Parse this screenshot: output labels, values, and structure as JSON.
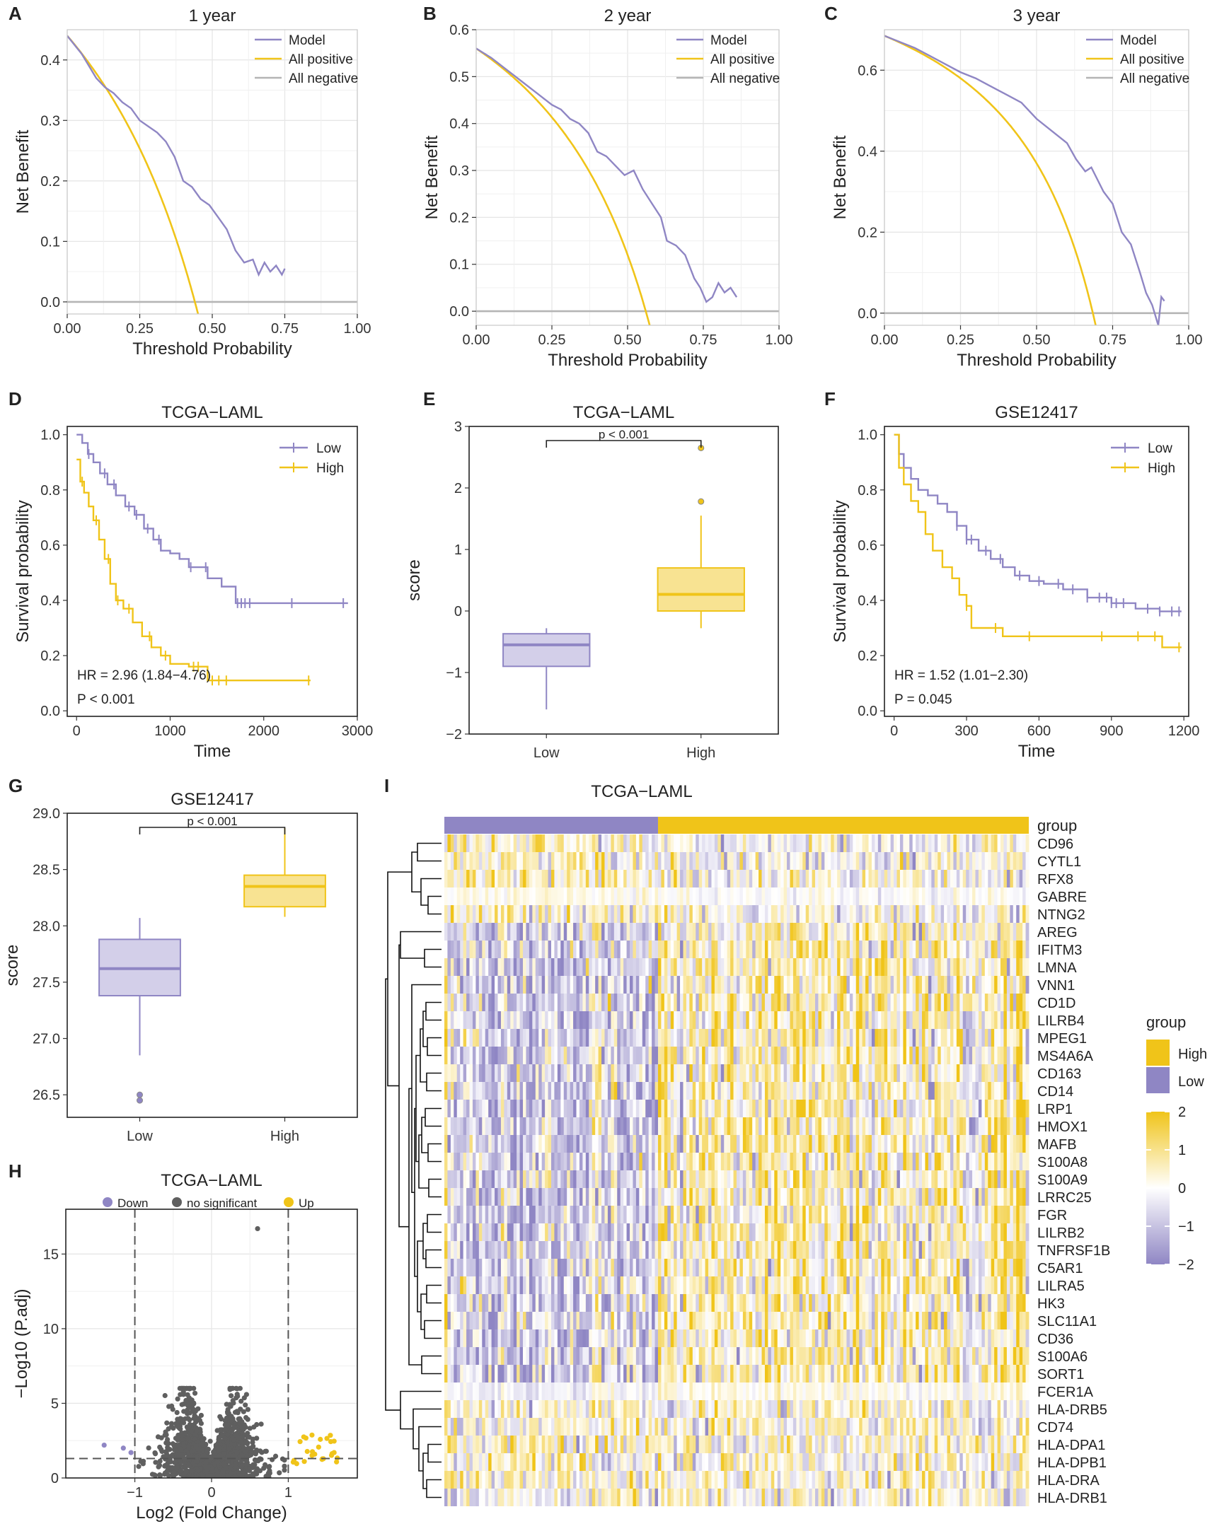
{
  "colors": {
    "purple": "#8f86c4",
    "gold": "#f0c419",
    "gray": "#b5b5b5",
    "dark": "#5f5f5f",
    "heat_low": "#8f86c4",
    "heat_mid": "#ffffff",
    "heat_high": "#f0c419"
  },
  "chart_data": [
    {
      "id": "A",
      "type": "line",
      "title": "1 year",
      "xlabel": "Threshold Probability",
      "ylabel": "Net Benefit",
      "xlim": [
        0,
        1
      ],
      "ylim": [
        -0.02,
        0.45
      ],
      "xticks": [
        0,
        0.25,
        0.5,
        0.75,
        1.0
      ],
      "xtick_labels": [
        "0.00",
        "0.25",
        "0.50",
        "0.75",
        "1.00"
      ],
      "yticks": [
        0,
        0.1,
        0.2,
        0.3,
        0.4
      ],
      "ytick_labels": [
        "0.0",
        "0.1",
        "0.2",
        "0.3",
        "0.4"
      ],
      "prevalence": 0.44,
      "legend": [
        "Model",
        "All positive",
        "All negative"
      ],
      "series": [
        {
          "name": "Model",
          "x": [
            0,
            0.05,
            0.1,
            0.13,
            0.16,
            0.19,
            0.22,
            0.25,
            0.28,
            0.31,
            0.34,
            0.37,
            0.4,
            0.43,
            0.46,
            0.49,
            0.52,
            0.55,
            0.58,
            0.61,
            0.64,
            0.66,
            0.68,
            0.7,
            0.72,
            0.74,
            0.75
          ],
          "y": [
            0.44,
            0.41,
            0.37,
            0.355,
            0.345,
            0.33,
            0.32,
            0.3,
            0.29,
            0.28,
            0.265,
            0.24,
            0.2,
            0.19,
            0.17,
            0.16,
            0.14,
            0.12,
            0.085,
            0.065,
            0.07,
            0.045,
            0.065,
            0.05,
            0.06,
            0.045,
            0.055
          ]
        },
        {
          "name": "All negative",
          "x": [
            0,
            1
          ],
          "y": [
            0,
            0
          ]
        }
      ]
    },
    {
      "id": "B",
      "type": "line",
      "title": "2 year",
      "xlabel": "Threshold Probability",
      "ylabel": "Net Benefit",
      "xlim": [
        0,
        1
      ],
      "ylim": [
        -0.03,
        0.6
      ],
      "xticks": [
        0,
        0.25,
        0.5,
        0.75,
        1.0
      ],
      "xtick_labels": [
        "0.00",
        "0.25",
        "0.50",
        "0.75",
        "1.00"
      ],
      "yticks": [
        0,
        0.1,
        0.2,
        0.3,
        0.4,
        0.5,
        0.6
      ],
      "ytick_labels": [
        "0.0",
        "0.1",
        "0.2",
        "0.3",
        "0.4",
        "0.5",
        "0.6"
      ],
      "prevalence": 0.56,
      "legend": [
        "Model",
        "All positive",
        "All negative"
      ],
      "series": [
        {
          "name": "Model",
          "x": [
            0,
            0.05,
            0.1,
            0.15,
            0.2,
            0.25,
            0.28,
            0.31,
            0.34,
            0.37,
            0.4,
            0.43,
            0.46,
            0.49,
            0.52,
            0.55,
            0.58,
            0.61,
            0.63,
            0.66,
            0.69,
            0.72,
            0.74,
            0.76,
            0.78,
            0.8,
            0.82,
            0.84,
            0.86
          ],
          "y": [
            0.56,
            0.54,
            0.515,
            0.49,
            0.465,
            0.44,
            0.43,
            0.41,
            0.4,
            0.38,
            0.34,
            0.33,
            0.31,
            0.29,
            0.3,
            0.26,
            0.23,
            0.2,
            0.15,
            0.14,
            0.12,
            0.07,
            0.05,
            0.02,
            0.03,
            0.06,
            0.04,
            0.05,
            0.03
          ]
        },
        {
          "name": "All negative",
          "x": [
            0,
            1
          ],
          "y": [
            0,
            0
          ]
        }
      ]
    },
    {
      "id": "C",
      "type": "line",
      "title": "3 year",
      "xlabel": "Threshold Probability",
      "ylabel": "Net Benefit",
      "xlim": [
        0,
        1
      ],
      "ylim": [
        -0.03,
        0.7
      ],
      "xticks": [
        0,
        0.25,
        0.5,
        0.75,
        1.0
      ],
      "xtick_labels": [
        "0.00",
        "0.25",
        "0.50",
        "0.75",
        "1.00"
      ],
      "yticks": [
        0,
        0.2,
        0.4,
        0.6
      ],
      "ytick_labels": [
        "0.0",
        "0.2",
        "0.4",
        "0.6"
      ],
      "prevalence": 0.685,
      "legend": [
        "Model",
        "All positive",
        "All negative"
      ],
      "series": [
        {
          "name": "Model",
          "x": [
            0,
            0.05,
            0.1,
            0.15,
            0.2,
            0.25,
            0.3,
            0.35,
            0.4,
            0.45,
            0.5,
            0.55,
            0.6,
            0.63,
            0.66,
            0.68,
            0.7,
            0.72,
            0.75,
            0.78,
            0.81,
            0.84,
            0.86,
            0.88,
            0.9,
            0.91,
            0.92
          ],
          "y": [
            0.685,
            0.67,
            0.655,
            0.635,
            0.615,
            0.595,
            0.58,
            0.56,
            0.54,
            0.52,
            0.48,
            0.45,
            0.42,
            0.38,
            0.35,
            0.36,
            0.33,
            0.3,
            0.27,
            0.2,
            0.17,
            0.1,
            0.05,
            0.02,
            -0.03,
            0.04,
            0.03
          ]
        },
        {
          "name": "All negative",
          "x": [
            0,
            1
          ],
          "y": [
            0,
            0
          ]
        }
      ]
    },
    {
      "id": "D",
      "type": "line",
      "subtype": "km",
      "title": "TCGA−LAML",
      "xlabel": "Time",
      "ylabel": "Survival probability",
      "xlim": [
        -100,
        3000
      ],
      "ylim": [
        -0.02,
        1.03
      ],
      "xticks": [
        0,
        1000,
        2000,
        3000
      ],
      "xtick_labels": [
        "0",
        "1000",
        "2000",
        "3000"
      ],
      "yticks": [
        0,
        0.2,
        0.4,
        0.6,
        0.8,
        1.0
      ],
      "ytick_labels": [
        "0.0",
        "0.2",
        "0.4",
        "0.6",
        "0.8",
        "1.0"
      ],
      "legend": [
        "Low",
        "High"
      ],
      "annotation": [
        "HR = 2.96 (1.84−4.76)",
        "P < 0.001"
      ],
      "series": [
        {
          "name": "Low",
          "x": [
            0,
            60,
            120,
            180,
            250,
            330,
            420,
            520,
            620,
            720,
            820,
            900,
            1000,
            1100,
            1200,
            1400,
            1550,
            1700,
            2000,
            2900
          ],
          "y": [
            1.0,
            0.97,
            0.93,
            0.9,
            0.86,
            0.82,
            0.78,
            0.74,
            0.71,
            0.66,
            0.62,
            0.58,
            0.57,
            0.55,
            0.52,
            0.48,
            0.45,
            0.39,
            0.39,
            0.39
          ],
          "censor": [
            130,
            300,
            400,
            560,
            640,
            760,
            880,
            1220,
            1380,
            1720,
            1760,
            1800,
            1850,
            2300,
            2850
          ]
        },
        {
          "name": "High",
          "x": [
            0,
            40,
            80,
            130,
            180,
            240,
            300,
            360,
            420,
            500,
            600,
            700,
            800,
            900,
            1000,
            1200,
            1400,
            1600,
            2500
          ],
          "y": [
            0.91,
            0.83,
            0.79,
            0.74,
            0.69,
            0.62,
            0.55,
            0.46,
            0.4,
            0.37,
            0.32,
            0.27,
            0.23,
            0.2,
            0.17,
            0.16,
            0.11,
            0.11,
            0.11
          ],
          "censor": [
            60,
            210,
            340,
            440,
            560,
            780,
            950,
            1250,
            1300,
            1450,
            1520,
            1600,
            2480
          ]
        }
      ]
    },
    {
      "id": "E",
      "type": "bar",
      "subtype": "boxplot",
      "title": "TCGA−LAML",
      "xlabel": "",
      "ylabel": "score",
      "categories": [
        "Low",
        "High"
      ],
      "ylim": [
        -2,
        3
      ],
      "yticks": [
        -2,
        -1,
        0,
        1,
        2,
        3
      ],
      "ytick_labels": [
        "−2",
        "−1",
        "0",
        "1",
        "2",
        "3"
      ],
      "pvalue": "p < 0.001",
      "boxes": [
        {
          "q1": -0.9,
          "median": -0.55,
          "q3": -0.37,
          "lo": -1.6,
          "hi": -0.28,
          "out": []
        },
        {
          "q1": 0.0,
          "median": 0.27,
          "q3": 0.7,
          "lo": -0.28,
          "hi": 1.55,
          "out": [
            1.78,
            2.65
          ]
        }
      ]
    },
    {
      "id": "F",
      "type": "line",
      "subtype": "km",
      "title": "GSE12417",
      "xlabel": "Time",
      "ylabel": "Survival probability",
      "xlim": [
        -40,
        1220
      ],
      "ylim": [
        -0.02,
        1.03
      ],
      "xticks": [
        0,
        300,
        600,
        900,
        1200
      ],
      "xtick_labels": [
        "0",
        "300",
        "600",
        "900",
        "1200"
      ],
      "yticks": [
        0,
        0.2,
        0.4,
        0.6,
        0.8,
        1.0
      ],
      "ytick_labels": [
        "0.0",
        "0.2",
        "0.4",
        "0.6",
        "0.8",
        "1.0"
      ],
      "legend": [
        "Low",
        "High"
      ],
      "annotation": [
        "HR = 1.52 (1.01−2.30)",
        "P = 0.045"
      ],
      "series": [
        {
          "name": "Low",
          "x": [
            0,
            20,
            40,
            70,
            100,
            140,
            180,
            220,
            260,
            300,
            350,
            400,
            450,
            500,
            560,
            620,
            700,
            800,
            900,
            1000,
            1100,
            1190
          ],
          "y": [
            1.0,
            0.93,
            0.88,
            0.84,
            0.8,
            0.78,
            0.75,
            0.72,
            0.67,
            0.62,
            0.58,
            0.55,
            0.52,
            0.49,
            0.47,
            0.46,
            0.44,
            0.41,
            0.39,
            0.37,
            0.36,
            0.36
          ],
          "censor": [
            260,
            300,
            320,
            380,
            440,
            520,
            600,
            680,
            740,
            800,
            850,
            880,
            900,
            920,
            950,
            1050,
            1100,
            1150,
            1180
          ]
        },
        {
          "name": "High",
          "x": [
            0,
            20,
            40,
            70,
            100,
            130,
            160,
            200,
            240,
            270,
            300,
            320,
            450,
            600,
            900,
            1110,
            1190
          ],
          "y": [
            1.0,
            0.88,
            0.82,
            0.76,
            0.72,
            0.64,
            0.58,
            0.52,
            0.48,
            0.42,
            0.38,
            0.3,
            0.27,
            0.27,
            0.27,
            0.23,
            0.23
          ],
          "censor": [
            300,
            420,
            560,
            860,
            1010,
            1080,
            1180
          ]
        }
      ]
    },
    {
      "id": "G",
      "type": "bar",
      "subtype": "boxplot",
      "title": "GSE12417",
      "xlabel": "",
      "ylabel": "score",
      "categories": [
        "Low",
        "High"
      ],
      "ylim": [
        26.3,
        29.0
      ],
      "yticks": [
        26.5,
        27.0,
        27.5,
        28.0,
        28.5,
        29.0
      ],
      "ytick_labels": [
        "26.5",
        "27.0",
        "27.5",
        "28.0",
        "28.5",
        "29.0"
      ],
      "pvalue": "p < 0.001",
      "boxes": [
        {
          "q1": 27.38,
          "median": 27.62,
          "q3": 27.88,
          "lo": 26.85,
          "hi": 28.07,
          "out": [
            26.5,
            26.45
          ]
        },
        {
          "q1": 28.17,
          "median": 28.35,
          "q3": 28.45,
          "lo": 28.08,
          "hi": 28.87,
          "out": []
        }
      ]
    },
    {
      "id": "H",
      "type": "scatter",
      "subtype": "volcano",
      "title": "TCGA−LAML",
      "xlabel": "Log2 (Fold Change)",
      "ylabel": "−Log10 (P.adj)",
      "xlim": [
        -1.9,
        1.9
      ],
      "ylim": [
        0,
        18
      ],
      "xticks": [
        -1,
        0,
        1
      ],
      "xtick_labels": [
        "−1",
        "0",
        "1"
      ],
      "yticks": [
        0,
        5,
        10,
        15
      ],
      "ytick_labels": [
        "0",
        "5",
        "10",
        "15"
      ],
      "legend": [
        "Down",
        "no significant",
        "Up"
      ],
      "thresholds": {
        "log2fc": 1,
        "neglog10p": 1.3
      },
      "top_point": {
        "x": 0.6,
        "y": 16.7
      }
    },
    {
      "id": "I",
      "type": "heatmap",
      "title": "TCGA−LAML",
      "annotation_label": "group",
      "group_counts": {
        "Low": 68,
        "High": 118
      },
      "genes": [
        "CD96",
        "CYTL1",
        "RFX8",
        "GABRE",
        "NTNG2",
        "AREG",
        "IFITM3",
        "LMNA",
        "VNN1",
        "CD1D",
        "LILRB4",
        "MPEG1",
        "MS4A6A",
        "CD163",
        "CD14",
        "LRP1",
        "HMOX1",
        "MAFB",
        "S100A8",
        "S100A9",
        "LRRC25",
        "FGR",
        "LILRB2",
        "TNFRSF1B",
        "C5AR1",
        "LILRA5",
        "HK3",
        "SLC11A1",
        "CD36",
        "S100A6",
        "SORT1",
        "FCER1A",
        "HLA-DRB5",
        "CD74",
        "HLA-DPA1",
        "HLA-DPB1",
        "HLA-DRA",
        "HLA-DRB1"
      ],
      "legend_title": "group",
      "legend_groups": [
        "High",
        "Low"
      ],
      "scale_range": [
        -2,
        2
      ],
      "scale_ticks": [
        2,
        1,
        0,
        -1,
        -2
      ],
      "scale_labels": [
        "2",
        "1",
        "0",
        "−1",
        "−2"
      ]
    }
  ],
  "panel_letters": [
    "A",
    "B",
    "C",
    "D",
    "E",
    "F",
    "G",
    "I",
    "H"
  ]
}
